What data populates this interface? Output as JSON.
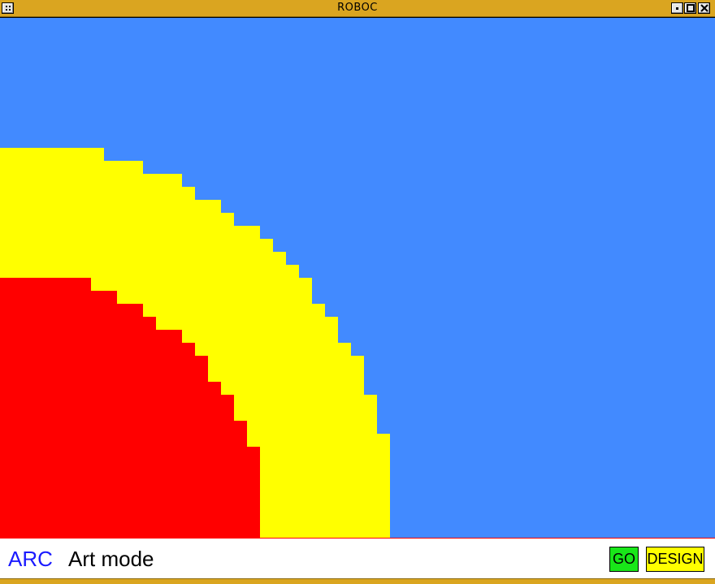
{
  "window": {
    "title": "ROBOC"
  },
  "titlebar": {
    "menu_icon": "window-menu-icon",
    "controls": [
      "minimize-icon",
      "maximize-icon",
      "close-icon"
    ]
  },
  "canvas": {
    "background_color": "#428aff",
    "outer_shape_color": "#ffff00",
    "inner_shape_color": "#ff0000"
  },
  "bottombar": {
    "mode_label": "ARC",
    "mode_description": "Art mode",
    "go_label": "GO",
    "design_label": "DESIGN",
    "mode_label_color": "#1a1aff",
    "go_color": "#19e619",
    "design_color": "#ffff00"
  }
}
